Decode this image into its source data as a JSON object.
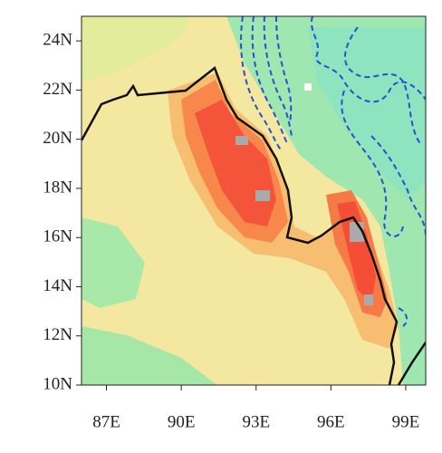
{
  "map": {
    "xlim": [
      86,
      99.8
    ],
    "ylim": [
      10,
      25
    ],
    "xticks": [
      {
        "value": 87,
        "label": "87E"
      },
      {
        "value": 90,
        "label": "90E"
      },
      {
        "value": 93,
        "label": "93E"
      },
      {
        "value": 96,
        "label": "96E"
      },
      {
        "value": 99,
        "label": "99E"
      }
    ],
    "yticks": [
      {
        "value": 10,
        "label": "10N"
      },
      {
        "value": 12,
        "label": "12N"
      },
      {
        "value": 14,
        "label": "14N"
      },
      {
        "value": 16,
        "label": "16N"
      },
      {
        "value": 18,
        "label": "18N"
      },
      {
        "value": 20,
        "label": "20N"
      },
      {
        "value": 22,
        "label": "22N"
      },
      {
        "value": 24,
        "label": "24N"
      }
    ]
  }
}
